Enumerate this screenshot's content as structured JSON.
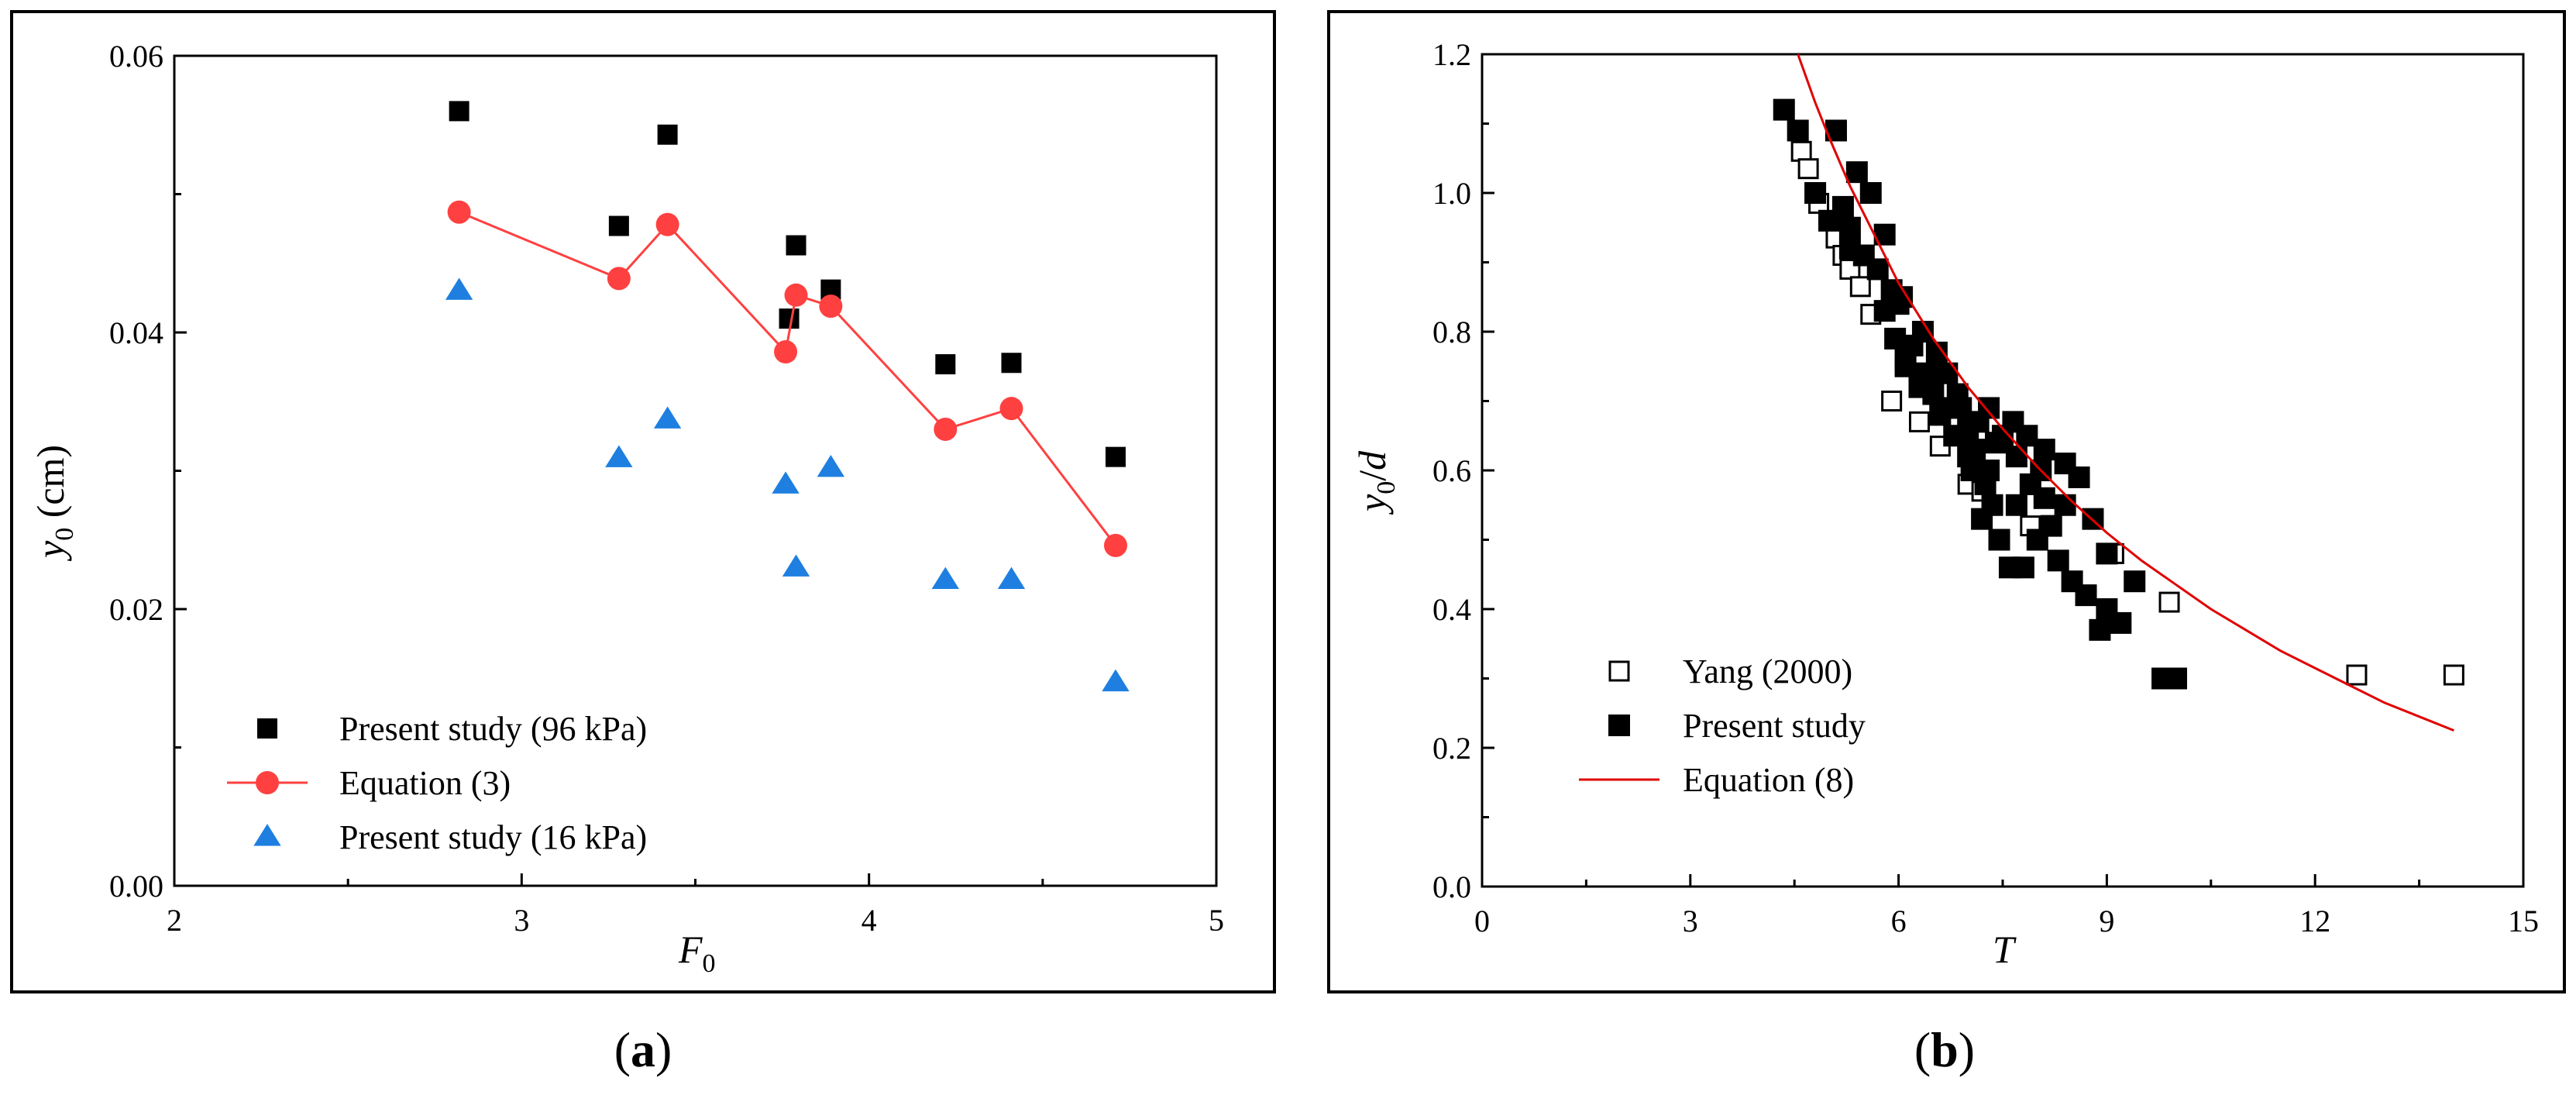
{
  "chart_data": [
    {
      "id": "a",
      "type": "scatter",
      "panel_label": "a",
      "xlim": [
        2,
        5
      ],
      "ylim": [
        0,
        0.06
      ],
      "xticks": [
        "2",
        "3",
        "4",
        "5"
      ],
      "yticks": [
        "0.00",
        "0.02",
        "0.04",
        "0.06"
      ],
      "xlabel": {
        "base": "F",
        "sub": "0"
      },
      "ylabel": {
        "base": "y",
        "sub": "0",
        "rest": " (cm)"
      },
      "legend_position": "bottom-left",
      "series": [
        {
          "name": "Present study (96 kPa)",
          "marker": "square",
          "color": "#000000",
          "line": false,
          "x": [
            2.82,
            3.28,
            3.42,
            3.77,
            3.79,
            3.89,
            4.22,
            4.41,
            4.71
          ],
          "y": [
            0.056,
            0.0477,
            0.0543,
            0.041,
            0.0463,
            0.0431,
            0.0377,
            0.0378,
            0.031
          ]
        },
        {
          "name": "Equation (3)",
          "marker": "circle",
          "color": "#ff4040",
          "line": true,
          "x": [
            2.82,
            3.28,
            3.42,
            3.76,
            3.79,
            3.89,
            4.22,
            4.41,
            4.71
          ],
          "y": [
            0.0487,
            0.0439,
            0.0478,
            0.0386,
            0.0427,
            0.0419,
            0.033,
            0.0345,
            0.0246
          ]
        },
        {
          "name": "Present study (16 kPa)",
          "marker": "triangle",
          "color": "#1e7fe0",
          "line": false,
          "x": [
            2.82,
            3.28,
            3.42,
            3.76,
            3.79,
            3.89,
            4.22,
            4.41,
            4.71
          ],
          "y": [
            0.043,
            0.0309,
            0.0337,
            0.029,
            0.023,
            0.0302,
            0.0221,
            0.0221,
            0.0147
          ]
        }
      ]
    },
    {
      "id": "b",
      "type": "scatter",
      "panel_label": "b",
      "xlim": [
        0,
        15
      ],
      "ylim": [
        0,
        1.2
      ],
      "xticks": [
        "0",
        "3",
        "6",
        "9",
        "12",
        "15"
      ],
      "yticks": [
        "0.0",
        "0.2",
        "0.4",
        "0.6",
        "0.8",
        "1.0",
        "1.2"
      ],
      "xlabel": {
        "base": "T"
      },
      "ylabel": {
        "base": "y",
        "sub": "0",
        "rest": "/",
        "base2": "d"
      },
      "legend_position": "bottom-left",
      "series": [
        {
          "name": "Yang (2000)",
          "marker": "open-square",
          "color": "#000000",
          "line": false,
          "x": [
            4.6,
            4.7,
            4.85,
            5.0,
            5.1,
            5.2,
            5.3,
            5.45,
            5.6,
            5.9,
            6.3,
            6.6,
            7.0,
            7.2,
            7.9,
            9.1,
            9.9,
            12.6,
            14.0
          ],
          "y": [
            1.06,
            1.035,
            0.985,
            0.96,
            0.935,
            0.91,
            0.89,
            0.865,
            0.825,
            0.7,
            0.67,
            0.635,
            0.58,
            0.57,
            0.52,
            0.48,
            0.41,
            0.305,
            0.305
          ]
        },
        {
          "name": "Present study",
          "marker": "filled-square",
          "color": "#000000",
          "line": false,
          "x": [
            4.35,
            4.55,
            4.8,
            5.0,
            5.1,
            5.2,
            5.3,
            5.4,
            5.5,
            5.6,
            5.7,
            5.8,
            5.9,
            5.95,
            6.0,
            6.05,
            6.1,
            6.2,
            6.3,
            6.35,
            6.4,
            6.5,
            6.55,
            6.6,
            6.7,
            6.8,
            6.85,
            6.9,
            7.0,
            7.05,
            7.1,
            7.15,
            7.2,
            7.25,
            7.3,
            7.35,
            7.4,
            7.45,
            7.5,
            7.6,
            7.65,
            7.7,
            7.8,
            7.85,
            7.9,
            8.0,
            8.05,
            8.1,
            8.2,
            8.3,
            8.4,
            8.5,
            8.6,
            8.7,
            8.8,
            8.9,
            9.0,
            9.2,
            9.4,
            9.8,
            10.0,
            5.3,
            5.8,
            6.1,
            6.6,
            7.0,
            7.3,
            7.7,
            8.1,
            8.4,
            9.0
          ],
          "y": [
            1.12,
            1.09,
            1.0,
            0.96,
            1.09,
            0.98,
            0.95,
            1.03,
            0.91,
            1.0,
            0.89,
            0.94,
            0.86,
            0.79,
            0.84,
            0.85,
            0.76,
            0.78,
            0.72,
            0.8,
            0.74,
            0.71,
            0.77,
            0.69,
            0.74,
            0.65,
            0.71,
            0.69,
            0.66,
            0.6,
            0.63,
            0.67,
            0.53,
            0.58,
            0.69,
            0.55,
            0.64,
            0.5,
            0.65,
            0.46,
            0.67,
            0.55,
            0.46,
            0.65,
            0.58,
            0.5,
            0.6,
            0.63,
            0.52,
            0.47,
            0.61,
            0.44,
            0.59,
            0.42,
            0.53,
            0.37,
            0.48,
            0.38,
            0.44,
            0.3,
            0.3,
            0.92,
            0.83,
            0.75,
            0.68,
            0.62,
            0.6,
            0.62,
            0.56,
            0.55,
            0.4
          ]
        },
        {
          "name": "Equation (8)",
          "marker": "none",
          "color": "#e00000",
          "line": true,
          "x": [
            4.55,
            4.8,
            5.0,
            5.3,
            5.6,
            6.0,
            6.5,
            7.0,
            7.5,
            8.0,
            8.5,
            9.0,
            9.5,
            10.0,
            10.5,
            11.0,
            11.5,
            12.0,
            12.5,
            13.0,
            13.5,
            14.0
          ],
          "y": [
            1.2,
            1.13,
            1.08,
            1.01,
            0.95,
            0.87,
            0.79,
            0.72,
            0.66,
            0.605,
            0.555,
            0.51,
            0.47,
            0.435,
            0.4,
            0.37,
            0.34,
            0.315,
            0.29,
            0.265,
            0.245,
            0.225
          ]
        }
      ]
    }
  ]
}
